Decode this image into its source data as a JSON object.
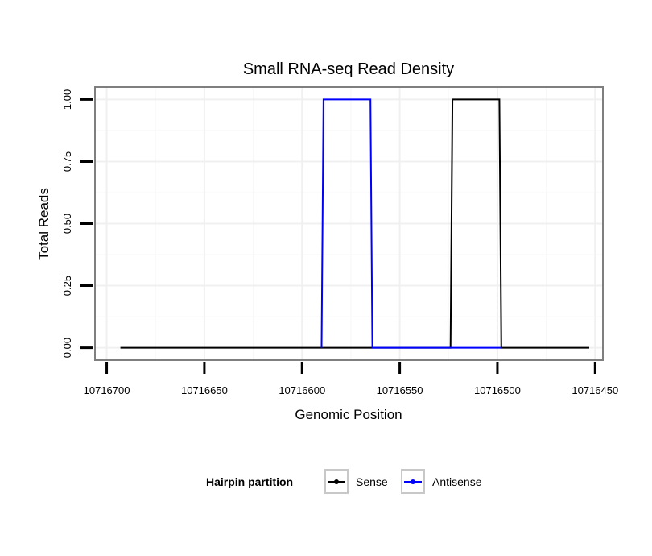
{
  "chart_data": {
    "type": "line",
    "title": "Small RNA-seq Read Density",
    "xlabel": "Genomic Position",
    "ylabel": "Total Reads",
    "x_reversed": true,
    "xlim": [
      10716706,
      10716446
    ],
    "ylim": [
      -0.05,
      1.05
    ],
    "x_ticks": [
      10716700,
      10716650,
      10716600,
      10716550,
      10716500,
      10716450
    ],
    "x_tick_labels": [
      "10716700",
      "10716650",
      "10716600",
      "10716550",
      "10716500",
      "10716450"
    ],
    "y_ticks": [
      0,
      0.25,
      0.5,
      0.75,
      1.0
    ],
    "y_tick_labels": [
      "0.00",
      "0.25",
      "0.50",
      "0.75",
      "1.00"
    ],
    "grid": true,
    "legend_title": "Hairpin partition",
    "legend_position": "bottom",
    "series": [
      {
        "name": "Sense",
        "color": "#000000",
        "x": [
          10716693,
          10716524,
          10716523,
          10716499,
          10716498,
          10716453
        ],
        "y": [
          0,
          0,
          1,
          1,
          0,
          0
        ]
      },
      {
        "name": "Antisense",
        "color": "#0000ff",
        "x": [
          10716590,
          10716589,
          10716565,
          10716564,
          10716524,
          10716498
        ],
        "y": [
          0,
          1,
          1,
          0,
          0,
          0
        ]
      }
    ]
  }
}
